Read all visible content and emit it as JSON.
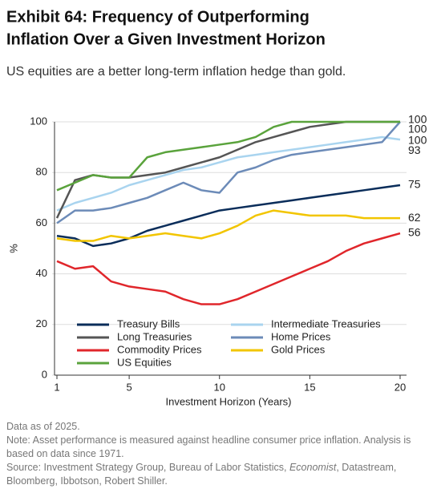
{
  "chart_data": {
    "type": "line",
    "title": [
      "Exhibit 64: Frequency of Outperforming",
      "Inflation Over a Given Investment Horizon"
    ],
    "subtitle": "US equities are a better long-term inflation hedge than gold.",
    "x_label": "Investment Horizon (Years)",
    "y_label": "%",
    "x": [
      1,
      2,
      3,
      4,
      5,
      6,
      7,
      8,
      9,
      10,
      11,
      12,
      13,
      14,
      15,
      16,
      17,
      18,
      19,
      20
    ],
    "series": [
      {
        "name": "Treasury Bills",
        "color": "#0a2d5a",
        "values": [
          55,
          54,
          51,
          52,
          54,
          57,
          59,
          61,
          63,
          65,
          66,
          67,
          68,
          69,
          70,
          71,
          72,
          73,
          74,
          75
        ]
      },
      {
        "name": "Intermediate Treasuries",
        "color": "#a9d4ef",
        "values": [
          65,
          68,
          70,
          72,
          75,
          77,
          79,
          81,
          82,
          84,
          86,
          87,
          88,
          89,
          90,
          91,
          92,
          93,
          94,
          93
        ]
      },
      {
        "name": "Long Treasuries",
        "color": "#555555",
        "values": [
          62,
          77,
          79,
          78,
          78,
          79,
          80,
          82,
          84,
          86,
          89,
          92,
          94,
          96,
          98,
          99,
          100,
          100,
          100,
          100
        ]
      },
      {
        "name": "Home Prices",
        "color": "#6c8bb8",
        "values": [
          60,
          65,
          65,
          66,
          68,
          70,
          73,
          76,
          73,
          72,
          80,
          82,
          85,
          87,
          88,
          89,
          90,
          91,
          92,
          100
        ]
      },
      {
        "name": "Commodity Prices",
        "color": "#e0262b",
        "values": [
          45,
          42,
          43,
          37,
          35,
          34,
          33,
          30,
          28,
          28,
          30,
          33,
          36,
          39,
          42,
          45,
          49,
          52,
          54,
          56
        ]
      },
      {
        "name": "Gold Prices",
        "color": "#f2c500",
        "values": [
          54,
          53,
          53,
          55,
          54,
          55,
          56,
          55,
          54,
          56,
          59,
          63,
          65,
          64,
          63,
          63,
          63,
          62,
          62,
          62
        ]
      },
      {
        "name": "US Equities",
        "color": "#5aa33c",
        "values": [
          73,
          76,
          79,
          78,
          78,
          86,
          88,
          89,
          90,
          91,
          92,
          94,
          98,
          100,
          100,
          100,
          100,
          100,
          100,
          100
        ]
      }
    ],
    "xlim": [
      1,
      20
    ],
    "xticks": [
      1,
      5,
      10,
      15,
      20
    ],
    "ylim": [
      0,
      100
    ],
    "yticks": [
      0,
      20,
      40,
      60,
      80,
      100
    ],
    "grid": true,
    "notes": [
      "Data as of 2025.",
      "Note: Asset performance is measured against headline consumer price inflation. Analysis is based on data since 1971."
    ],
    "source": [
      "Source: Investment Strategy Group, Bureau of Labor Statistics, ",
      "Economist",
      ", Datastream, Bloomberg, Ibbotson, Robert Shiller."
    ]
  }
}
